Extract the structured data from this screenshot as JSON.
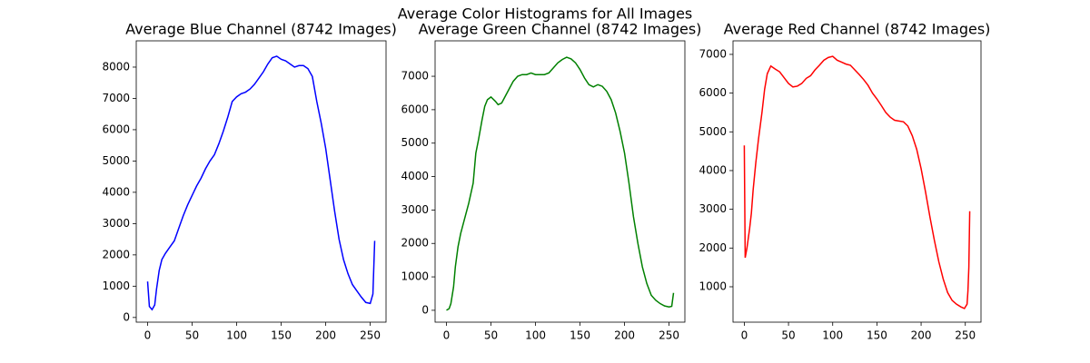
{
  "title": "Average Color Histograms for All Images",
  "chart_data": [
    {
      "type": "line",
      "title": "Average Blue Channel (8742 Images)",
      "color": "#0000ff",
      "x": [
        0,
        2,
        5,
        8,
        10,
        13,
        16,
        20,
        25,
        30,
        35,
        40,
        45,
        50,
        55,
        60,
        65,
        70,
        75,
        80,
        85,
        90,
        95,
        100,
        105,
        110,
        115,
        120,
        125,
        130,
        135,
        140,
        145,
        150,
        155,
        160,
        165,
        170,
        175,
        180,
        185,
        190,
        195,
        200,
        205,
        210,
        215,
        220,
        225,
        230,
        235,
        240,
        245,
        250,
        253,
        255
      ],
      "values": [
        1150,
        350,
        250,
        400,
        900,
        1500,
        1850,
        2050,
        2250,
        2450,
        2850,
        3250,
        3600,
        3900,
        4200,
        4450,
        4750,
        5000,
        5200,
        5550,
        5950,
        6400,
        6900,
        7050,
        7150,
        7200,
        7300,
        7450,
        7650,
        7850,
        8100,
        8300,
        8350,
        8250,
        8200,
        8100,
        8000,
        8050,
        8050,
        7950,
        7700,
        6900,
        6200,
        5400,
        4400,
        3400,
        2500,
        1850,
        1400,
        1050,
        850,
        650,
        480,
        450,
        750,
        2450
      ],
      "xlim": [
        -12.75,
        267.75
      ],
      "xticks": [
        0,
        50,
        100,
        150,
        200,
        250
      ],
      "ylim": [
        -150,
        8840
      ],
      "yticks": [
        0,
        1000,
        2000,
        3000,
        4000,
        5000,
        6000,
        7000,
        8000
      ]
    },
    {
      "type": "line",
      "title": "Average Green Channel (8742 Images)",
      "color": "#008000",
      "x": [
        0,
        3,
        5,
        8,
        10,
        13,
        16,
        20,
        25,
        30,
        33,
        36,
        40,
        43,
        46,
        50,
        55,
        58,
        62,
        65,
        70,
        75,
        80,
        85,
        90,
        95,
        100,
        105,
        110,
        115,
        120,
        125,
        130,
        135,
        140,
        145,
        150,
        155,
        160,
        165,
        170,
        175,
        180,
        185,
        190,
        195,
        200,
        205,
        210,
        215,
        220,
        225,
        230,
        235,
        240,
        245,
        250,
        253,
        255
      ],
      "values": [
        0,
        50,
        200,
        700,
        1300,
        1900,
        2300,
        2700,
        3200,
        3800,
        4700,
        5100,
        5700,
        6100,
        6300,
        6380,
        6250,
        6150,
        6200,
        6350,
        6600,
        6850,
        7000,
        7050,
        7050,
        7100,
        7050,
        7050,
        7050,
        7100,
        7250,
        7400,
        7500,
        7570,
        7520,
        7400,
        7200,
        6950,
        6750,
        6680,
        6750,
        6700,
        6550,
        6300,
        5900,
        5350,
        4700,
        3800,
        2800,
        2000,
        1300,
        800,
        450,
        300,
        200,
        130,
        100,
        120,
        520
      ],
      "xlim": [
        -12.75,
        267.75
      ],
      "xticks": [
        0,
        50,
        100,
        150,
        200,
        250
      ],
      "ylim": [
        -355,
        8060
      ],
      "yticks": [
        0,
        1000,
        2000,
        3000,
        4000,
        5000,
        6000,
        7000
      ]
    },
    {
      "type": "line",
      "title": "Average Red Channel (8742 Images)",
      "color": "#ff0000",
      "x": [
        0,
        1,
        3,
        6,
        8,
        10,
        13,
        16,
        20,
        23,
        26,
        30,
        35,
        40,
        45,
        50,
        55,
        60,
        65,
        70,
        75,
        80,
        85,
        90,
        95,
        100,
        105,
        110,
        115,
        120,
        125,
        130,
        135,
        140,
        145,
        150,
        155,
        160,
        165,
        170,
        175,
        180,
        185,
        190,
        195,
        200,
        205,
        210,
        215,
        220,
        225,
        230,
        235,
        240,
        245,
        249,
        252,
        253,
        254,
        255
      ],
      "values": [
        4650,
        1750,
        2000,
        2500,
        2900,
        3500,
        4200,
        4800,
        5500,
        6100,
        6500,
        6700,
        6620,
        6550,
        6400,
        6250,
        6160,
        6180,
        6250,
        6380,
        6450,
        6600,
        6720,
        6850,
        6920,
        6950,
        6850,
        6800,
        6750,
        6720,
        6600,
        6480,
        6350,
        6200,
        6000,
        5850,
        5680,
        5500,
        5380,
        5300,
        5280,
        5260,
        5150,
        4900,
        4550,
        4050,
        3450,
        2800,
        2200,
        1650,
        1200,
        850,
        650,
        550,
        480,
        440,
        550,
        900,
        1500,
        2950
      ],
      "xlim": [
        -12.75,
        267.75
      ],
      "xticks": [
        0,
        50,
        100,
        150,
        200,
        250
      ],
      "ylim": [
        86,
        7350
      ],
      "yticks": [
        1000,
        2000,
        3000,
        4000,
        5000,
        6000,
        7000
      ]
    }
  ]
}
